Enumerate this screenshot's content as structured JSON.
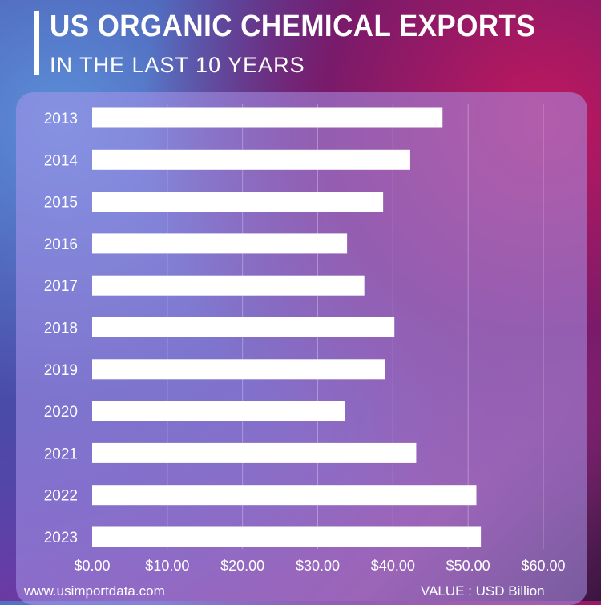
{
  "header": {
    "title": "US ORGANIC CHEMICAL EXPORTS",
    "subtitle": "IN THE LAST 10 YEARS"
  },
  "footer": {
    "website": "www.usimportdata.com",
    "unit_note": "VALUE : USD Billion"
  },
  "colors": {
    "bar": "#ffffff",
    "text": "#ffffff",
    "panel": "#aa96eb"
  },
  "chart_data": {
    "type": "bar",
    "orientation": "horizontal",
    "categories": [
      "2013",
      "2014",
      "2015",
      "2016",
      "2017",
      "2018",
      "2019",
      "2020",
      "2021",
      "2022",
      "2023"
    ],
    "values": [
      46.6,
      42.3,
      38.7,
      33.9,
      36.2,
      40.2,
      38.9,
      33.6,
      43.1,
      51.1,
      51.7
    ],
    "xlim": [
      0,
      60
    ],
    "xticks": [
      "$0.00",
      "$10.00",
      "$20.00",
      "$30.00",
      "$40.00",
      "$50.00",
      "$60.00"
    ],
    "grid": true,
    "title": "US ORGANIC CHEMICAL EXPORTS",
    "xlabel": "VALUE : USD Billion",
    "ylabel": ""
  }
}
